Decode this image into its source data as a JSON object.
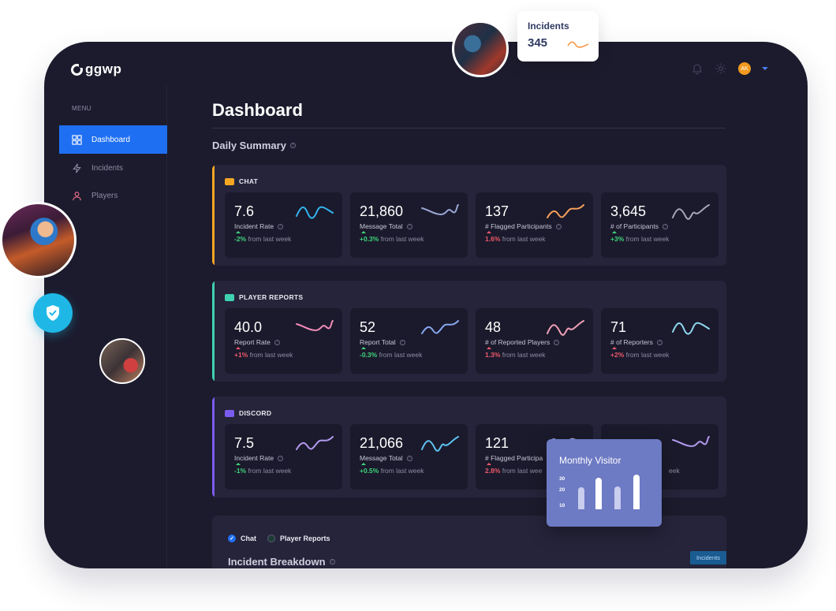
{
  "app": {
    "logo_text": "ggwp"
  },
  "topbar": {
    "avatar_initials": "AK",
    "icons": [
      "bell-icon",
      "gear-icon",
      "chevron-down-icon"
    ]
  },
  "sidebar": {
    "menu_label": "MENU",
    "items": [
      {
        "label": "Dashboard",
        "icon": "grid-icon",
        "active": true
      },
      {
        "label": "Incidents",
        "icon": "bolt-icon",
        "active": false
      },
      {
        "label": "Players",
        "icon": "user-icon",
        "active": false
      }
    ]
  },
  "main": {
    "title": "Dashboard",
    "section_title": "Daily Summary",
    "panels": [
      {
        "title": "CHAT",
        "accent": "#f5a623",
        "cards": [
          {
            "value": "7.6",
            "label": "Incident Rate",
            "change": "-2%",
            "change_text": "from last week",
            "direction": "up",
            "spark_color": "#33b5f0"
          },
          {
            "value": "21,860",
            "label": "Message Total",
            "change": "+0.3%",
            "change_text": "from last week",
            "direction": "up",
            "spark_color": "#9aa6d4"
          },
          {
            "value": "137",
            "label": "# Flagged Participants",
            "change": "1.6%",
            "change_text": "from last week",
            "direction": "down",
            "spark_color": "#f5a05a"
          },
          {
            "value": "3,645",
            "label": "# of Participants",
            "change": "+3%",
            "change_text": "from last week",
            "direction": "up",
            "spark_color": "#a6a6b8"
          }
        ]
      },
      {
        "title": "PLAYER REPORTS",
        "accent": "#3fd1b0",
        "cards": [
          {
            "value": "40.0",
            "label": "Report Rate",
            "change": "+1%",
            "change_text": "from last week",
            "direction": "down",
            "spark_color": "#f28cb8"
          },
          {
            "value": "52",
            "label": "Report Total",
            "change": "-0.3%",
            "change_text": "from last week",
            "direction": "up",
            "spark_color": "#86a8f0"
          },
          {
            "value": "48",
            "label": "# of Reported Players",
            "change": "1.3%",
            "change_text": "from last week",
            "direction": "down",
            "spark_color": "#f0a0b8"
          },
          {
            "value": "71",
            "label": "# of Reporters",
            "change": "+2%",
            "change_text": "from last week",
            "direction": "down",
            "spark_color": "#8fd8f0"
          }
        ]
      },
      {
        "title": "DISCORD",
        "accent": "#7b5cf0",
        "cards": [
          {
            "value": "7.5",
            "label": "Incident Rate",
            "change": "-1%",
            "change_text": "from last week",
            "direction": "up",
            "spark_color": "#b49af0"
          },
          {
            "value": "21,066",
            "label": "Message Total",
            "change": "+0.5%",
            "change_text": "from last week",
            "direction": "up",
            "spark_color": "#5cc4f0"
          },
          {
            "value": "121",
            "label": "# Flagged Participa",
            "change": "2.8%",
            "change_text": "from last wee",
            "direction": "down",
            "spark_color": "#9aa6d4"
          },
          {
            "value": "",
            "label": "",
            "change": "",
            "change_text": "eek",
            "direction": "up",
            "spark_color": "#b49af0"
          }
        ]
      }
    ],
    "breakdown": {
      "toggles": [
        {
          "label": "Chat",
          "on": true
        },
        {
          "label": "Player Reports",
          "on": false
        }
      ],
      "title": "Incident Breakdown",
      "tag": "Incidents"
    }
  },
  "incidents_popup": {
    "title": "Incidents",
    "value": "345"
  },
  "visitor_popup": {
    "title": "Monthly Visitor",
    "axis_ticks": [
      "30",
      "20",
      "10"
    ],
    "bar_values": [
      19,
      27,
      20,
      30
    ]
  }
}
